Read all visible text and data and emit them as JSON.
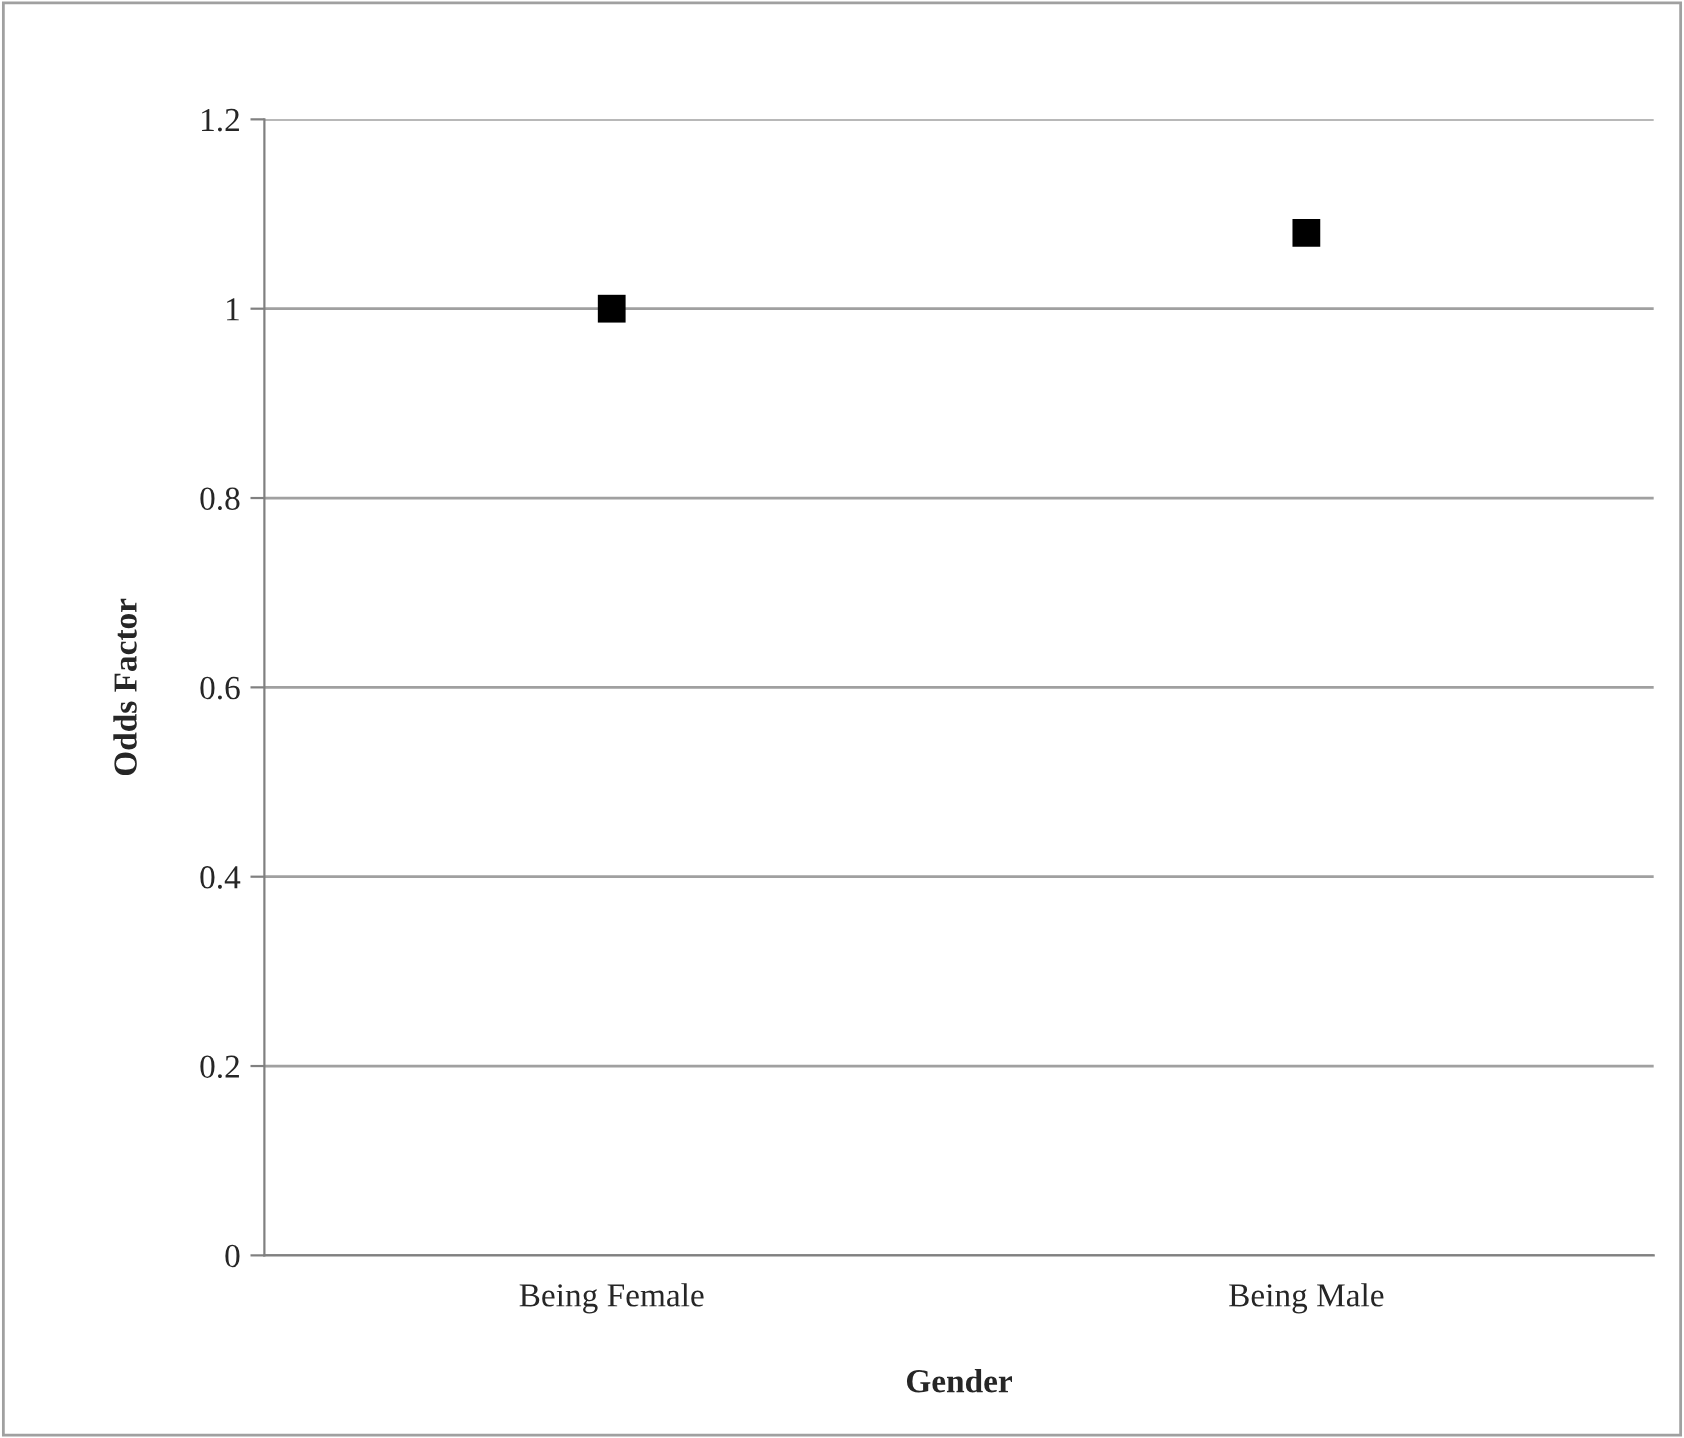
{
  "chart_data": {
    "type": "scatter",
    "xlabel": "Gender",
    "ylabel": "Odds Factor",
    "categories": [
      "Being Female",
      "Being Male"
    ],
    "series": [
      {
        "color": "#000000",
        "values": [
          1.0,
          1.08
        ]
      }
    ],
    "ylim": [
      0,
      1.2
    ],
    "yticks": [
      0,
      0.2,
      0.4,
      0.6,
      0.8,
      1,
      1.2
    ],
    "grid": "y",
    "marker": "square"
  }
}
